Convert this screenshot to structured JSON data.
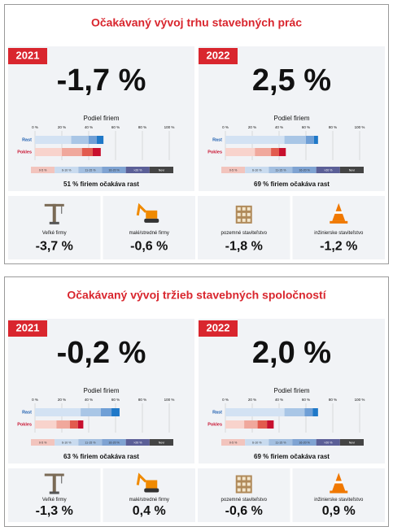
{
  "panels": [
    {
      "title": "Očakávaný vývoj trhu stavebných prác",
      "years": [
        {
          "year": "2021",
          "value": "-1,7 %",
          "share_label": "Podiel firiem",
          "xlim": [
            0,
            100
          ],
          "ticks": [
            {
              "value": 0,
              "label": "0 %"
            },
            {
              "value": 20,
              "label": "20 %"
            },
            {
              "value": 40,
              "label": "40 %"
            },
            {
              "value": 60,
              "label": "60 %"
            },
            {
              "value": 80,
              "label": "80 %"
            },
            {
              "value": 100,
              "label": "100 %"
            }
          ],
          "rows": [
            {
              "name": "Rast",
              "segments": [
                27,
                13,
                6,
                5
              ]
            },
            {
              "name": "Pokles",
              "segments": [
                20,
                15,
                8,
                6
              ]
            }
          ],
          "legend": [
            "0-5 %",
            "6-10 %",
            "11-15 %",
            "16-20 %",
            ">20 %",
            "Neví"
          ],
          "caption": "51 % firiem očakáva rast"
        },
        {
          "year": "2022",
          "value": "2,5 %",
          "share_label": "Podiel firiem",
          "xlim": [
            0,
            100
          ],
          "ticks": [
            {
              "value": 0,
              "label": "0 %"
            },
            {
              "value": 20,
              "label": "20 %"
            },
            {
              "value": 40,
              "label": "40 %"
            },
            {
              "value": 60,
              "label": "60 %"
            },
            {
              "value": 80,
              "label": "80 %"
            },
            {
              "value": 100,
              "label": "100 %"
            }
          ],
          "rows": [
            {
              "name": "Rast",
              "segments": [
                44,
                16,
                6,
                3
              ]
            },
            {
              "name": "Pokles",
              "segments": [
                22,
                12,
                6,
                5
              ]
            }
          ],
          "legend": [
            "0-5 %",
            "6-10 %",
            "11-15 %",
            "16-20 %",
            ">20 %",
            "Neví"
          ],
          "caption": "69 % firiem očakáva rast"
        }
      ],
      "categories": [
        {
          "label": "Veľké firmy",
          "value": "-3,7 %"
        },
        {
          "label": "malé/stredné firmy",
          "value": "-0,6 %"
        },
        {
          "label": "pozemné staviteľstvo",
          "value": "-1,8 %"
        },
        {
          "label": "inžinierske staviteľstvo",
          "value": "-1,2 %"
        }
      ]
    },
    {
      "title": "Očakávaný vývoj tržieb stavebných spoločností",
      "years": [
        {
          "year": "2021",
          "value": "-0,2 %",
          "share_label": "Podiel firiem",
          "xlim": [
            0,
            100
          ],
          "ticks": [
            {
              "value": 0,
              "label": "0 %"
            },
            {
              "value": 20,
              "label": "20 %"
            },
            {
              "value": 40,
              "label": "40 %"
            },
            {
              "value": 60,
              "label": "60 %"
            },
            {
              "value": 80,
              "label": "80 %"
            },
            {
              "value": 100,
              "label": "100 %"
            }
          ],
          "rows": [
            {
              "name": "Rast",
              "segments": [
                34,
                15,
                8,
                6
              ]
            },
            {
              "name": "Pokles",
              "segments": [
                16,
                10,
                6,
                4
              ]
            }
          ],
          "legend": [
            "0-5 %",
            "6-10 %",
            "11-15 %",
            "16-20 %",
            ">20 %",
            "Neví"
          ],
          "caption": "63 % firiem očakáva rast"
        },
        {
          "year": "2022",
          "value": "2,0 %",
          "share_label": "Podiel firiem",
          "xlim": [
            0,
            100
          ],
          "ticks": [
            {
              "value": 0,
              "label": "0 %"
            },
            {
              "value": 20,
              "label": "20 %"
            },
            {
              "value": 40,
              "label": "40 %"
            },
            {
              "value": 60,
              "label": "60 %"
            },
            {
              "value": 80,
              "label": "80 %"
            },
            {
              "value": 100,
              "label": "100 %"
            }
          ],
          "rows": [
            {
              "name": "Rast",
              "segments": [
                44,
                15,
                6,
                4
              ]
            },
            {
              "name": "Pokles",
              "segments": [
                14,
                10,
                7,
                5
              ]
            }
          ],
          "legend": [
            "0-5 %",
            "6-10 %",
            "11-15 %",
            "16-20 %",
            ">20 %",
            "Neví"
          ],
          "caption": "69 % firiem očakáva rast"
        }
      ],
      "categories": [
        {
          "label": "Veľké firmy",
          "value": "-1,3 %"
        },
        {
          "label": "malé/stredné firmy",
          "value": "0,4 %"
        },
        {
          "label": "pozemné staviteľstvo",
          "value": "-0,6 %"
        },
        {
          "label": "inžinierske staviteľstvo",
          "value": "0,9 %"
        }
      ]
    }
  ],
  "colors": {
    "rast": [
      "#d3e2f3",
      "#a9c6e6",
      "#6f9fd6",
      "#1f78c8"
    ],
    "pokles": [
      "#f8d3cc",
      "#f0a89c",
      "#e25b4e",
      "#c8102e"
    ],
    "legend": [
      "#f2c4bd",
      "#c9dbef",
      "#a3bfe0",
      "#7fa3d2",
      "#5b5f97",
      "#444444"
    ],
    "accent": "#d9262e"
  }
}
